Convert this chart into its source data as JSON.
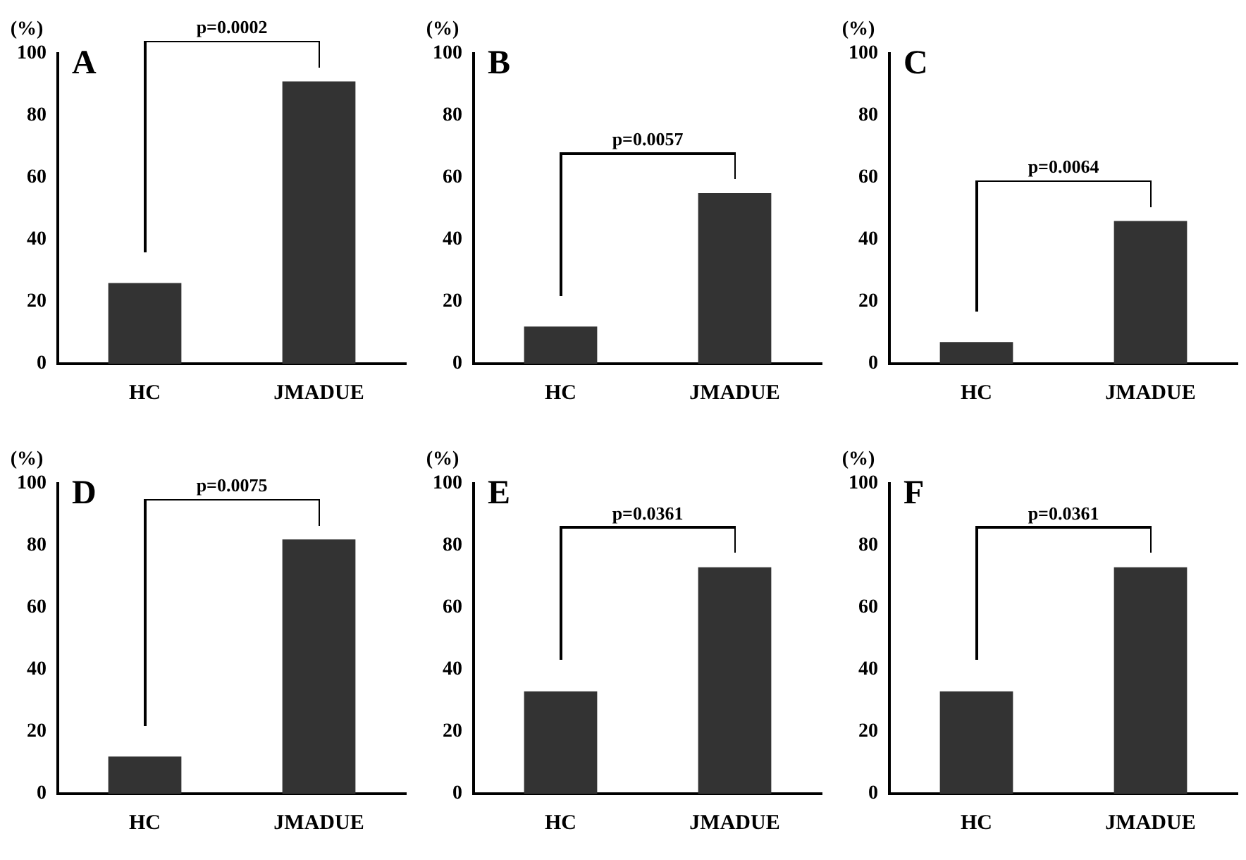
{
  "chart_data": [
    {
      "type": "bar",
      "title": "A",
      "ylabel": "(%)",
      "categories": [
        "HC",
        "JMADUE"
      ],
      "values": [
        26,
        91
      ],
      "color": "#333333",
      "ylim": [
        0,
        100
      ],
      "yticks": [
        0,
        20,
        40,
        60,
        80,
        100
      ],
      "annotations": [
        "p=0.0002"
      ]
    },
    {
      "type": "bar",
      "title": "B",
      "ylabel": "(%)",
      "categories": [
        "HC",
        "JMADUE"
      ],
      "values": [
        12,
        55
      ],
      "color": "#333333",
      "ylim": [
        0,
        100
      ],
      "yticks": [
        0,
        20,
        40,
        60,
        80,
        100
      ],
      "annotations": [
        "p=0.0057"
      ]
    },
    {
      "type": "bar",
      "title": "C",
      "ylabel": "(%)",
      "categories": [
        "HC",
        "JMADUE"
      ],
      "values": [
        7,
        46
      ],
      "color": "#333333",
      "ylim": [
        0,
        100
      ],
      "yticks": [
        0,
        20,
        40,
        60,
        80,
        100
      ],
      "annotations": [
        "p=0.0064"
      ]
    },
    {
      "type": "bar",
      "title": "D",
      "ylabel": "(%)",
      "categories": [
        "HC",
        "JMADUE"
      ],
      "values": [
        12,
        82
      ],
      "color": "#333333",
      "ylim": [
        0,
        100
      ],
      "yticks": [
        0,
        20,
        40,
        60,
        80,
        100
      ],
      "annotations": [
        "p=0.0075"
      ]
    },
    {
      "type": "bar",
      "title": "E",
      "ylabel": "(%)",
      "categories": [
        "HC",
        "JMADUE"
      ],
      "values": [
        33,
        73
      ],
      "color": "#333333",
      "ylim": [
        0,
        100
      ],
      "yticks": [
        0,
        20,
        40,
        60,
        80,
        100
      ],
      "annotations": [
        "p=0.0361"
      ]
    },
    {
      "type": "bar",
      "title": "F",
      "ylabel": "(%)",
      "categories": [
        "HC",
        "JMADUE"
      ],
      "values": [
        33,
        73
      ],
      "color": "#333333",
      "ylim": [
        0,
        100
      ],
      "yticks": [
        0,
        20,
        40,
        60,
        80,
        100
      ],
      "annotations": [
        "p=0.0361"
      ]
    }
  ]
}
